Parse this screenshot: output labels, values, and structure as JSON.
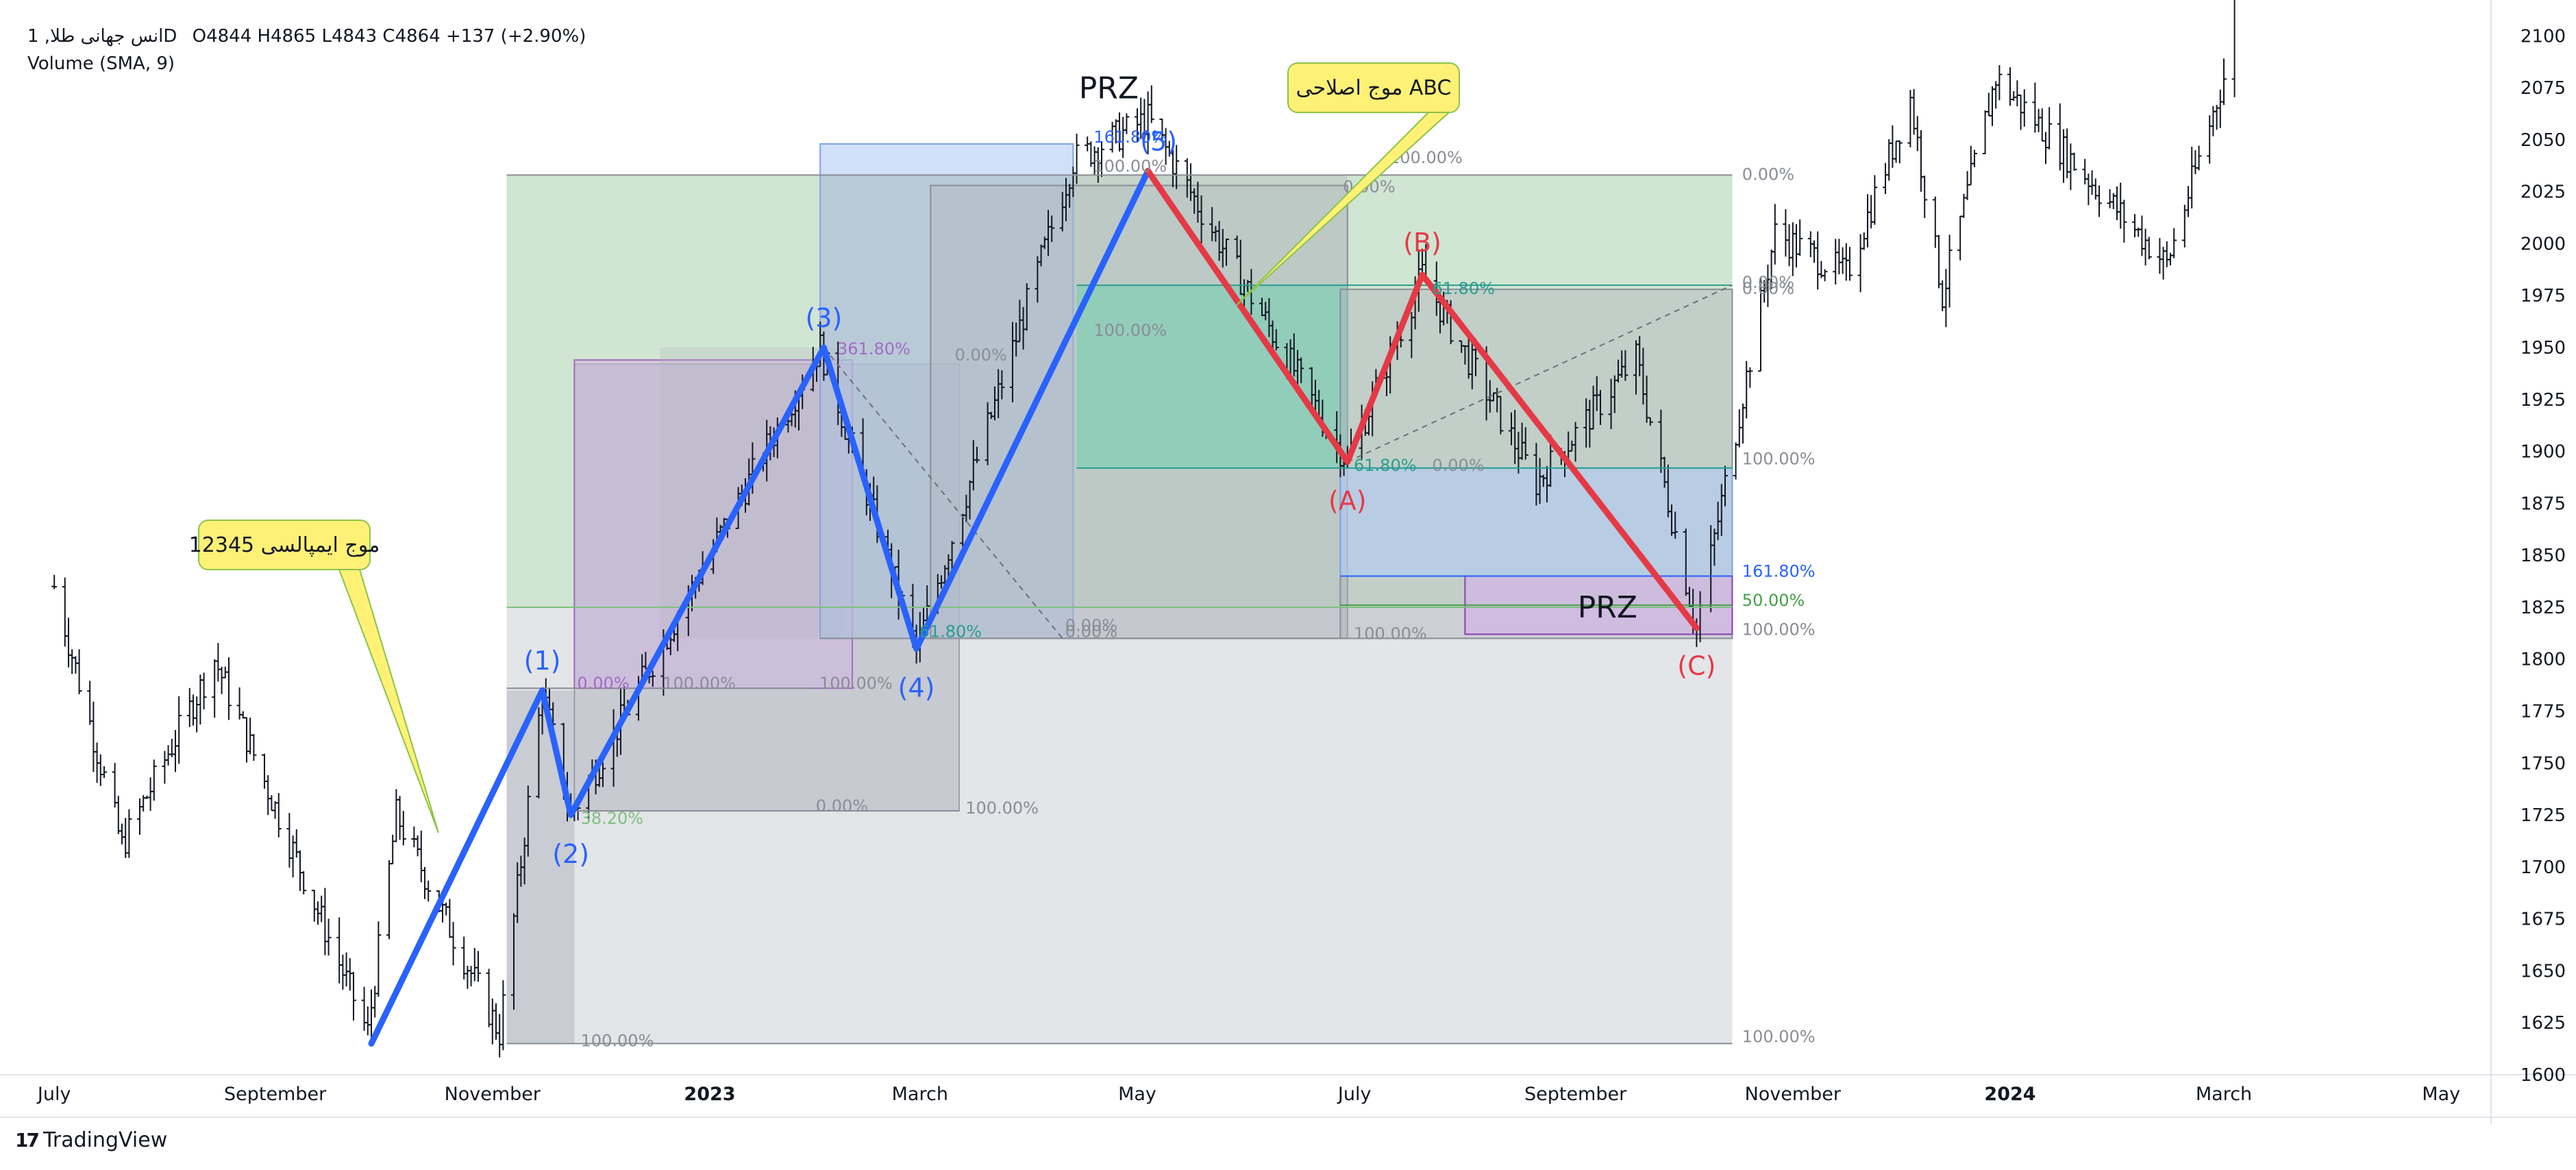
{
  "header": {
    "symbol": "انس جهانی طلا, 1D",
    "ohlc": "O4844  H4865  L4843  C4864  +137 (+2.90%)",
    "volume_label": "Volume (SMA, 9)"
  },
  "branding": {
    "name": "TradingView",
    "mark": "17"
  },
  "annotations": {
    "impulse_callout": "موج ایمپالسی 12345",
    "corrective_callout": "موج اصلاحی ABC",
    "prz_top": "PRZ",
    "prz_bottom": "PRZ",
    "waves": [
      "(1)",
      "(2)",
      "(3)",
      "(4)",
      "(5)",
      "(A)",
      "(B)",
      "(C)"
    ]
  },
  "fib_labels": [
    "161.80%",
    "100.00%",
    "100.00%",
    "0.00%",
    "0.00%",
    "100.00%",
    "61.80%",
    "361.80%",
    "0.00%",
    "100.00%",
    "0.00%",
    "0.00%",
    "61.80%",
    "100.00%",
    "0.00%",
    "100.00%",
    "100.00%",
    "38.20%",
    "0.00%",
    "100.00%",
    "100.00%",
    "0.00%",
    "61.80%",
    "100.00%",
    "161.80%",
    "50.00%",
    "100.00%",
    "0.00%",
    "0.00%"
  ],
  "colors": {
    "impulse": "#2962ff",
    "corrective": "#e53946",
    "callout_fill": "#fff176",
    "callout_border": "#8bc34a",
    "box_green": "#c8e6c9",
    "box_gray": "#b0b4bc",
    "box_blue": "#b3cbf5",
    "box_purple": "#d1b3e6"
  },
  "chart_data": {
    "type": "ohlc",
    "title": "",
    "ylabel": "",
    "xlabel": "",
    "ylim": [
      1600,
      2110
    ],
    "y_ticks": [
      1600,
      1625,
      1650,
      1675,
      1700,
      1725,
      1750,
      1775,
      1800,
      1825,
      1850,
      1875,
      1900,
      1925,
      1950,
      1975,
      2000,
      2025,
      2050,
      2075,
      2100
    ],
    "x_ticks": [
      "July",
      "September",
      "November",
      "2023",
      "March",
      "May",
      "July",
      "September",
      "November",
      "2024",
      "March",
      "May"
    ],
    "bold_x_ticks": [
      "2023",
      "2024"
    ],
    "price_path": [
      {
        "date": "2022-07-01",
        "price": 1835
      },
      {
        "date": "2022-07-20",
        "price": 1710
      },
      {
        "date": "2022-08-15",
        "price": 1800
      },
      {
        "date": "2022-09-27",
        "price": 1620
      },
      {
        "date": "2022-10-05",
        "price": 1725
      },
      {
        "date": "2022-11-03",
        "price": 1620
      },
      {
        "date": "2022-11-15",
        "price": 1785
      },
      {
        "date": "2022-11-23",
        "price": 1725
      },
      {
        "date": "2023-02-01",
        "price": 1950
      },
      {
        "date": "2023-02-28",
        "price": 1805
      },
      {
        "date": "2023-04-13",
        "price": 2040
      },
      {
        "date": "2023-05-04",
        "price": 2060
      },
      {
        "date": "2023-06-29",
        "price": 1895
      },
      {
        "date": "2023-07-20",
        "price": 1985
      },
      {
        "date": "2023-08-21",
        "price": 1885
      },
      {
        "date": "2023-09-18",
        "price": 1945
      },
      {
        "date": "2023-10-05",
        "price": 1815
      },
      {
        "date": "2023-10-27",
        "price": 2005
      },
      {
        "date": "2023-11-16",
        "price": 1985
      },
      {
        "date": "2023-12-04",
        "price": 2070
      },
      {
        "date": "2023-12-13",
        "price": 1975
      },
      {
        "date": "2023-12-28",
        "price": 2080
      },
      {
        "date": "2024-02-14",
        "price": 1990
      },
      {
        "date": "2024-03-01",
        "price": 2080
      },
      {
        "date": "2024-03-06",
        "price": 2150
      }
    ],
    "impulse_wave": [
      {
        "label": "",
        "date": "2022-09-28",
        "price": 1615
      },
      {
        "label": "(1)",
        "date": "2022-11-15",
        "price": 1785
      },
      {
        "label": "(2)",
        "date": "2022-11-23",
        "price": 1725
      },
      {
        "label": "(3)",
        "date": "2023-02-02",
        "price": 1950
      },
      {
        "label": "(4)",
        "date": "2023-02-28",
        "price": 1805
      },
      {
        "label": "(5)",
        "date": "2023-05-04",
        "price": 2035
      }
    ],
    "corrective_wave": [
      {
        "label": "(5)",
        "date": "2023-05-04",
        "price": 2035
      },
      {
        "label": "(A)",
        "date": "2023-06-29",
        "price": 1895
      },
      {
        "label": "(B)",
        "date": "2023-07-20",
        "price": 1985
      },
      {
        "label": "(C)",
        "date": "2023-10-05",
        "price": 1815
      }
    ]
  }
}
